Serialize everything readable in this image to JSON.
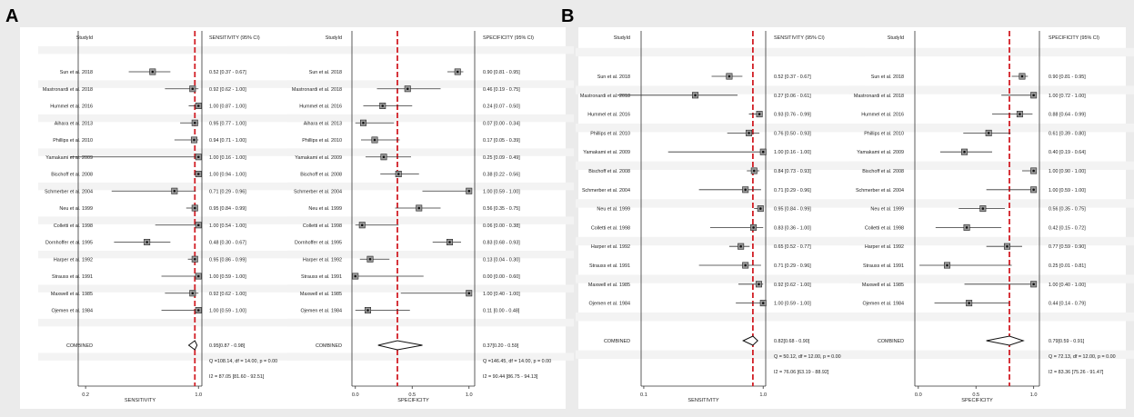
{
  "chart_data": [
    {
      "panel_label": "A",
      "measure": "SENSITIVITY",
      "type": "forest",
      "scale": "log",
      "title_col": "StudyId",
      "ci_header": "SENSITIVITY (95% CI)",
      "xlabel": "SENSITIVITY",
      "xlim": [
        0.18,
        1.05
      ],
      "xticks": [
        {
          "v": 0.2,
          "label": "0.2"
        },
        {
          "v": 1.0,
          "label": "1.0"
        }
      ],
      "pooled": 0.95,
      "studies": [
        {
          "name": "Sun et al. 2018",
          "est": 0.52,
          "lo": 0.37,
          "hi": 0.67,
          "ci": "0.52 [0.37 - 0.67]"
        },
        {
          "name": "Mastronardi et al. 2018",
          "est": 0.92,
          "lo": 0.62,
          "hi": 1.0,
          "ci": "0.92 [0.62 - 1.00]"
        },
        {
          "name": "Hummel et al. 2016",
          "est": 1.0,
          "lo": 0.87,
          "hi": 1.0,
          "ci": "1.00 [0.87 - 1.00]"
        },
        {
          "name": "Aihara et al. 2013",
          "est": 0.95,
          "lo": 0.77,
          "hi": 1.0,
          "ci": "0.95 [0.77 - 1.00]"
        },
        {
          "name": "Phillips et al. 2010",
          "est": 0.94,
          "lo": 0.71,
          "hi": 1.0,
          "ci": "0.94 [0.71 - 1.00]"
        },
        {
          "name": "Yamakami et al. 2009",
          "est": 1.0,
          "lo": 0.16,
          "hi": 1.0,
          "ci": "1.00 [0.16 - 1.00]"
        },
        {
          "name": "Bischoff et al. 2008",
          "est": 1.0,
          "lo": 0.94,
          "hi": 1.0,
          "ci": "1.00 [0.94 - 1.00]"
        },
        {
          "name": "Schmerber et al. 2004",
          "est": 0.71,
          "lo": 0.29,
          "hi": 0.96,
          "ci": "0.71 [0.29 - 0.96]"
        },
        {
          "name": "Neu et al. 1999",
          "est": 0.95,
          "lo": 0.84,
          "hi": 0.99,
          "ci": "0.95 [0.84 - 0.99]"
        },
        {
          "name": "Colletti et al. 1998",
          "est": 1.0,
          "lo": 0.54,
          "hi": 1.0,
          "ci": "1.00 [0.54 - 1.00]"
        },
        {
          "name": "Dornhoffer et al. 1995",
          "est": 0.48,
          "lo": 0.3,
          "hi": 0.67,
          "ci": "0.48 [0.30 - 0.67]"
        },
        {
          "name": "Harper et al. 1992",
          "est": 0.95,
          "lo": 0.86,
          "hi": 0.99,
          "ci": "0.95 [0.86 - 0.99]"
        },
        {
          "name": "Strauss et al. 1991",
          "est": 1.0,
          "lo": 0.59,
          "hi": 1.0,
          "ci": "1.00 [0.59 - 1.00]"
        },
        {
          "name": "Maxwell et al. 1985",
          "est": 0.92,
          "lo": 0.62,
          "hi": 1.0,
          "ci": "0.92 [0.62 - 1.00]"
        },
        {
          "name": "Ojemen et al. 1984",
          "est": 1.0,
          "lo": 0.59,
          "hi": 1.0,
          "ci": "1.00 [0.59 - 1.00]"
        }
      ],
      "combined": {
        "label": "COMBINED",
        "est": 0.95,
        "lo": 0.87,
        "hi": 0.98,
        "ci": "0.95[0.87 - 0.98]"
      },
      "q_text": "Q =108.14, df = 14.00, p =  0.00",
      "i2_text": "I2 = 87.05 [81.60 - 92.51]"
    },
    {
      "panel_label": "A",
      "measure": "SPECIFICITY",
      "type": "forest",
      "scale": "linear",
      "title_col": "StudyId",
      "ci_header": "SPECIFICITY (95% CI)",
      "xlabel": "SPECIFICITY",
      "xlim": [
        -0.03,
        1.05
      ],
      "xticks": [
        {
          "v": 0.0,
          "label": "0.0"
        },
        {
          "v": 0.5,
          "label": "0.5"
        },
        {
          "v": 1.0,
          "label": "1.0"
        }
      ],
      "pooled": 0.37,
      "studies": [
        {
          "name": "Sun et al. 2018",
          "est": 0.9,
          "lo": 0.81,
          "hi": 0.95,
          "ci": "0.90 [0.81 - 0.95]"
        },
        {
          "name": "Mastronardi et al. 2018",
          "est": 0.46,
          "lo": 0.19,
          "hi": 0.75,
          "ci": "0.46 [0.19 - 0.75]"
        },
        {
          "name": "Hummel et al. 2016",
          "est": 0.24,
          "lo": 0.07,
          "hi": 0.5,
          "ci": "0.24 [0.07 - 0.50]"
        },
        {
          "name": "Aihara et al. 2013",
          "est": 0.07,
          "lo": 0.0,
          "hi": 0.34,
          "ci": "0.07 [0.00 - 0.34]"
        },
        {
          "name": "Phillips et al. 2010",
          "est": 0.17,
          "lo": 0.05,
          "hi": 0.39,
          "ci": "0.17 [0.05 - 0.39]"
        },
        {
          "name": "Yamakami et al. 2009",
          "est": 0.25,
          "lo": 0.09,
          "hi": 0.49,
          "ci": "0.25 [0.09 - 0.49]"
        },
        {
          "name": "Bischoff et al. 2008",
          "est": 0.38,
          "lo": 0.22,
          "hi": 0.56,
          "ci": "0.38 [0.22 - 0.56]"
        },
        {
          "name": "Schmerber et al. 2004",
          "est": 1.0,
          "lo": 0.59,
          "hi": 1.0,
          "ci": "1.00 [0.59 - 1.00]"
        },
        {
          "name": "Neu et al. 1999",
          "est": 0.56,
          "lo": 0.35,
          "hi": 0.75,
          "ci": "0.56 [0.35 - 0.75]"
        },
        {
          "name": "Colletti et al. 1998",
          "est": 0.06,
          "lo": 0.0,
          "hi": 0.38,
          "ci": "0.06 [0.00 - 0.38]"
        },
        {
          "name": "Dornhoffer et al. 1995",
          "est": 0.83,
          "lo": 0.68,
          "hi": 0.93,
          "ci": "0.83 [0.68 - 0.93]"
        },
        {
          "name": "Harper et al. 1992",
          "est": 0.13,
          "lo": 0.04,
          "hi": 0.3,
          "ci": "0.13 [0.04 - 0.30]"
        },
        {
          "name": "Strauss et al. 1991",
          "est": 0.0,
          "lo": 0.0,
          "hi": 0.6,
          "ci": "0.00 [0.00 - 0.60]"
        },
        {
          "name": "Maxwell et al. 1985",
          "est": 1.0,
          "lo": 0.4,
          "hi": 1.0,
          "ci": "1.00 [0.40 - 1.00]"
        },
        {
          "name": "Ojemen et al. 1984",
          "est": 0.11,
          "lo": 0.0,
          "hi": 0.48,
          "ci": "0.11 [0.00 - 0.48]"
        }
      ],
      "combined": {
        "label": "COMBINED",
        "est": 0.37,
        "lo": 0.2,
        "hi": 0.59,
        "ci": "0.37[0.20 - 0.59]"
      },
      "q_text": "Q =146.45, df = 14.00, p =  0.00",
      "i2_text": "I2 = 90.44 [86.75 - 94.13]"
    },
    {
      "panel_label": "B",
      "measure": "SENSITIVITY",
      "type": "forest",
      "scale": "log",
      "title_col": "StudyId",
      "ci_header": "SENSITIVITY (95% CI)",
      "xlabel": "SENSITIVITY",
      "xlim": [
        0.095,
        1.05
      ],
      "xticks": [
        {
          "v": 0.1,
          "label": "0.1"
        },
        {
          "v": 1.0,
          "label": "1.0"
        }
      ],
      "pooled": 0.82,
      "studies": [
        {
          "name": "Sun et al. 2018",
          "est": 0.52,
          "lo": 0.37,
          "hi": 0.67,
          "ci": "0.52 [0.37 - 0.67]"
        },
        {
          "name": "Mastronardi et al. 2018",
          "est": 0.27,
          "lo": 0.06,
          "hi": 0.61,
          "ci": "0.27 [0.06 - 0.61]"
        },
        {
          "name": "Hummel et al. 2016",
          "est": 0.93,
          "lo": 0.76,
          "hi": 0.99,
          "ci": "0.93 [0.76 - 0.99]"
        },
        {
          "name": "Phillips et al. 2010",
          "est": 0.76,
          "lo": 0.5,
          "hi": 0.93,
          "ci": "0.76 [0.50 - 0.93]"
        },
        {
          "name": "Yamakami et al. 2009",
          "est": 1.0,
          "lo": 0.16,
          "hi": 1.0,
          "ci": "1.00 [0.16 - 1.00]"
        },
        {
          "name": "Bischoff et al. 2008",
          "est": 0.84,
          "lo": 0.73,
          "hi": 0.93,
          "ci": "0.84 [0.73 - 0.93]"
        },
        {
          "name": "Schmerber et al. 2004",
          "est": 0.71,
          "lo": 0.29,
          "hi": 0.96,
          "ci": "0.71 [0.29 - 0.96]"
        },
        {
          "name": "Neu et al. 1999",
          "est": 0.95,
          "lo": 0.84,
          "hi": 0.99,
          "ci": "0.95 [0.84 - 0.99]"
        },
        {
          "name": "Colletti et al. 1998",
          "est": 0.83,
          "lo": 0.36,
          "hi": 1.0,
          "ci": "0.83 [0.36 - 1.00]"
        },
        {
          "name": "Harper et al. 1992",
          "est": 0.65,
          "lo": 0.52,
          "hi": 0.77,
          "ci": "0.65 [0.52 - 0.77]"
        },
        {
          "name": "Strauss et al. 1991",
          "est": 0.71,
          "lo": 0.29,
          "hi": 0.96,
          "ci": "0.71 [0.29 - 0.96]"
        },
        {
          "name": "Maxwell et al. 1985",
          "est": 0.92,
          "lo": 0.62,
          "hi": 1.0,
          "ci": "0.92 [0.62 - 1.00]"
        },
        {
          "name": "Ojemen et al. 1984",
          "est": 1.0,
          "lo": 0.59,
          "hi": 1.0,
          "ci": "1.00 [0.59 - 1.00]"
        }
      ],
      "combined": {
        "label": "COMBINED",
        "est": 0.82,
        "lo": 0.68,
        "hi": 0.9,
        "ci": "0.82[0.68 - 0.90]"
      },
      "q_text": "Q = 50.12, df = 12.00, p =  0.00",
      "i2_text": "I2 = 76.06 [63.19 - 88.92]"
    },
    {
      "panel_label": "B",
      "measure": "SPECIFICITY",
      "type": "forest",
      "scale": "linear",
      "title_col": "StudyId",
      "ci_header": "SPECIFICITY (95% CI)",
      "xlabel": "SPECIFICITY",
      "xlim": [
        -0.03,
        1.05
      ],
      "xticks": [
        {
          "v": 0.0,
          "label": "0.0"
        },
        {
          "v": 0.5,
          "label": "0.5"
        },
        {
          "v": 1.0,
          "label": "1.0"
        }
      ],
      "pooled": 0.79,
      "studies": [
        {
          "name": "Sun et al. 2018",
          "est": 0.9,
          "lo": 0.81,
          "hi": 0.95,
          "ci": "0.90 [0.81 - 0.95]"
        },
        {
          "name": "Mastronardi et al. 2018",
          "est": 1.0,
          "lo": 0.72,
          "hi": 1.0,
          "ci": "1.00 [0.72 - 1.00]"
        },
        {
          "name": "Hummel et al. 2016",
          "est": 0.88,
          "lo": 0.64,
          "hi": 0.99,
          "ci": "0.88 [0.64 - 0.99]"
        },
        {
          "name": "Phillips et al. 2010",
          "est": 0.61,
          "lo": 0.39,
          "hi": 0.8,
          "ci": "0.61 [0.39 - 0.80]"
        },
        {
          "name": "Yamakami et al. 2009",
          "est": 0.4,
          "lo": 0.19,
          "hi": 0.64,
          "ci": "0.40 [0.19 - 0.64]"
        },
        {
          "name": "Bischoff et al. 2008",
          "est": 1.0,
          "lo": 0.9,
          "hi": 1.0,
          "ci": "1.00 [0.90 - 1.00]"
        },
        {
          "name": "Schmerber et al. 2004",
          "est": 1.0,
          "lo": 0.59,
          "hi": 1.0,
          "ci": "1.00 [0.59 - 1.00]"
        },
        {
          "name": "Neu et al. 1999",
          "est": 0.56,
          "lo": 0.35,
          "hi": 0.75,
          "ci": "0.56 [0.35 - 0.75]"
        },
        {
          "name": "Colletti et al. 1998",
          "est": 0.42,
          "lo": 0.15,
          "hi": 0.72,
          "ci": "0.42 [0.15 - 0.72]"
        },
        {
          "name": "Harper et al. 1992",
          "est": 0.77,
          "lo": 0.59,
          "hi": 0.9,
          "ci": "0.77 [0.59 - 0.90]"
        },
        {
          "name": "Strauss et al. 1991",
          "est": 0.25,
          "lo": 0.01,
          "hi": 0.81,
          "ci": "0.25 [0.01 - 0.81]"
        },
        {
          "name": "Maxwell et al. 1985",
          "est": 1.0,
          "lo": 0.4,
          "hi": 1.0,
          "ci": "1.00 [0.40 - 1.00]"
        },
        {
          "name": "Ojemen et al. 1984",
          "est": 0.44,
          "lo": 0.14,
          "hi": 0.79,
          "ci": "0.44 [0.14 - 0.79]"
        }
      ],
      "combined": {
        "label": "COMBINED",
        "est": 0.79,
        "lo": 0.59,
        "hi": 0.91,
        "ci": "0.79[0.59 - 0.91]"
      },
      "q_text": "Q = 72.13, df = 12.00, p =  0.00",
      "i2_text": "I2 = 83.36 [75.26 - 91.47]"
    }
  ]
}
